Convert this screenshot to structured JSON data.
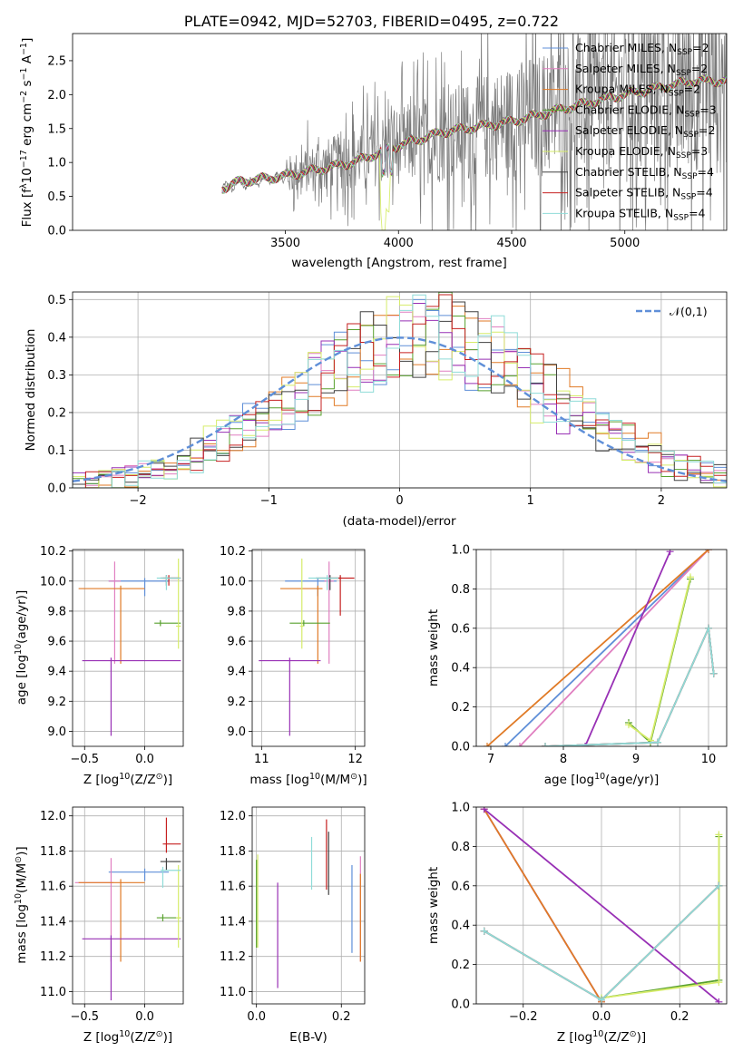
{
  "colors": {
    "chabrier_miles": "#5f8fd8",
    "salpeter_miles": "#e07fc0",
    "kroupa_miles": "#e07a26",
    "chabrier_elodie": "#58a02e",
    "salpeter_elodie": "#9830b5",
    "kroupa_elodie": "#d6ec6a",
    "chabrier_stelib": "#404040",
    "salpeter_stelib": "#c62020",
    "kroupa_stelib": "#8fdcd8",
    "observed": "#7a7a7a",
    "normal": "#5f8fd8"
  },
  "chart_data": [
    {
      "type": "line",
      "title": "PLATE=0942, MJD=52703, FIBERID=0495, z=0.722",
      "xlabel": "wavelength [Angstrom, rest frame]",
      "ylabel_parts": [
        "Flux [f",
        "λ",
        "10",
        "−17",
        " erg cm",
        "−2",
        " s",
        "−1",
        " A",
        "−1",
        "]"
      ],
      "xlim": [
        2560,
        5450
      ],
      "ylim": [
        0,
        2.9
      ],
      "xticks": [
        "3500",
        "4000",
        "4500",
        "5000"
      ],
      "yticks": [
        "0.0",
        "0.5",
        "1.0",
        "1.5",
        "2.0",
        "2.5"
      ],
      "grid": false,
      "legend_position": "top-right",
      "legend": [
        [
          "Chabrier MILES, N",
          "SSP",
          "=2"
        ],
        [
          "Salpeter MILES, N",
          "SSP",
          "=2"
        ],
        [
          "Kroupa MILES, N",
          "SSP",
          "=2"
        ],
        [
          "Chabrier ELODIE, N",
          "SSP",
          "=3"
        ],
        [
          "Salpeter ELODIE, N",
          "SSP",
          "=2"
        ],
        [
          "Kroupa ELODIE, N",
          "SSP",
          "=3"
        ],
        [
          "Chabrier STELIB, N",
          "SSP",
          "=4"
        ],
        [
          "Salpeter STELIB, N",
          "SSP",
          "=4"
        ],
        [
          "Kroupa STELIB, N",
          "SSP",
          "=4"
        ]
      ],
      "model_trend": {
        "x": [
          3220,
          3300,
          3500,
          3800,
          4000,
          4200,
          4500,
          4800,
          5000,
          5300
        ],
        "y": [
          0.62,
          0.72,
          0.8,
          1.0,
          1.25,
          1.45,
          1.6,
          1.85,
          2.0,
          2.2
        ]
      },
      "observed_trend": {
        "x": [
          3220,
          3500,
          4000,
          4500,
          5000,
          5300
        ],
        "y": [
          0.62,
          0.8,
          1.25,
          1.6,
          2.0,
          2.2
        ]
      }
    },
    {
      "type": "bar",
      "xlabel": "(data-model)/error",
      "ylabel": "Normed distribution",
      "xlim": [
        -2.5,
        2.5
      ],
      "ylim": [
        0,
        0.52
      ],
      "xticks": [
        "−2",
        "−1",
        "0",
        "1",
        "2"
      ],
      "yticks": [
        "0.0",
        "0.1",
        "0.2",
        "0.3",
        "0.4",
        "0.5"
      ],
      "grid": true,
      "legend_position": "top-right",
      "legend_label": "𝒩(0,1)",
      "normal": {
        "mean": 0,
        "sigma": 1
      },
      "bin_width": 0.1
    },
    {
      "type": "scatter",
      "xlabel_parts": [
        "Z [log",
        "10",
        "(Z/Z",
        "⊙",
        ")]"
      ],
      "ylabel_parts": [
        "age  [log",
        "10",
        "(age/yr)]"
      ],
      "xlim": [
        -0.6,
        0.32
      ],
      "ylim": [
        8.9,
        10.21
      ],
      "xticks": [
        "−0.5",
        "0.0"
      ],
      "yticks": [
        "9.0",
        "9.2",
        "9.4",
        "9.6",
        "9.8",
        "10.0",
        "10.2"
      ],
      "grid": true,
      "points": [
        {
          "model": "chabrier_miles",
          "x": 0.0,
          "y": 10.0,
          "xerr": [
            0.3,
            0.2
          ],
          "yerr": [
            0.1,
            0.02
          ]
        },
        {
          "model": "salpeter_miles",
          "x": -0.25,
          "y": 10.0,
          "xerr": [
            0.05,
            0.05
          ],
          "yerr": [
            0.55,
            0.13
          ]
        },
        {
          "model": "kroupa_miles",
          "x": -0.2,
          "y": 9.95,
          "xerr": [
            0.35,
            0.2
          ],
          "yerr": [
            0.5,
            0.02
          ]
        },
        {
          "model": "chabrier_elodie",
          "x": 0.13,
          "y": 9.72,
          "xerr": [
            0.05,
            0.17
          ],
          "yerr": [
            0.02,
            0.02
          ]
        },
        {
          "model": "salpeter_elodie",
          "x": -0.28,
          "y": 9.47,
          "xerr": [
            0.24,
            0.58
          ],
          "yerr": [
            0.5,
            0.02
          ]
        },
        {
          "model": "kroupa_elodie",
          "x": 0.28,
          "y": 9.7,
          "xerr": [
            0.02,
            0.02
          ],
          "yerr": [
            0.15,
            0.45
          ]
        },
        {
          "model": "chabrier_stelib",
          "x": 0.18,
          "y": 10.02,
          "xerr": [
            0.05,
            0.1
          ],
          "yerr": [
            0.05,
            0.02
          ]
        },
        {
          "model": "salpeter_stelib",
          "x": 0.2,
          "y": 10.02,
          "xerr": [
            0.05,
            0.1
          ],
          "yerr": [
            0.05,
            0.02
          ]
        },
        {
          "model": "kroupa_stelib",
          "x": 0.18,
          "y": 10.02,
          "xerr": [
            0.08,
            0.12
          ],
          "yerr": [
            0.08,
            0.02
          ]
        }
      ]
    },
    {
      "type": "scatter",
      "xlabel_parts": [
        "mass [log",
        "10",
        "(M/M",
        "⊙",
        ")]"
      ],
      "xlim": [
        10.9,
        12.1
      ],
      "ylim": [
        8.9,
        10.21
      ],
      "xticks": [
        "11",
        "12"
      ],
      "yticks": [
        "9.0",
        "9.2",
        "9.4",
        "9.6",
        "9.8",
        "10.0",
        "10.2"
      ],
      "grid": true,
      "points": [
        {
          "model": "chabrier_miles",
          "x": 11.6,
          "y": 10.0,
          "xerr": [
            0.35,
            0.2
          ],
          "yerr": [
            0.1,
            0.02
          ]
        },
        {
          "model": "salpeter_miles",
          "x": 11.72,
          "y": 10.0,
          "xerr": [
            0.05,
            0.05
          ],
          "yerr": [
            0.55,
            0.13
          ]
        },
        {
          "model": "kroupa_miles",
          "x": 11.6,
          "y": 9.95,
          "xerr": [
            0.4,
            0.05
          ],
          "yerr": [
            0.5,
            0.02
          ]
        },
        {
          "model": "chabrier_elodie",
          "x": 11.45,
          "y": 9.72,
          "xerr": [
            0.15,
            0.28
          ],
          "yerr": [
            0.02,
            0.02
          ]
        },
        {
          "model": "salpeter_elodie",
          "x": 11.3,
          "y": 9.47,
          "xerr": [
            0.33,
            0.33
          ],
          "yerr": [
            0.5,
            0.02
          ]
        },
        {
          "model": "kroupa_elodie",
          "x": 11.43,
          "y": 9.7,
          "xerr": [
            0.02,
            0.02
          ],
          "yerr": [
            0.15,
            0.45
          ]
        },
        {
          "model": "chabrier_stelib",
          "x": 11.73,
          "y": 10.02,
          "xerr": [
            0.15,
            0.12
          ],
          "yerr": [
            0.08,
            0.02
          ]
        },
        {
          "model": "salpeter_stelib",
          "x": 11.84,
          "y": 10.02,
          "xerr": [
            0.1,
            0.15
          ],
          "yerr": [
            0.25,
            0.02
          ]
        },
        {
          "model": "kroupa_stelib",
          "x": 11.7,
          "y": 10.02,
          "xerr": [
            0.2,
            0.12
          ],
          "yerr": [
            0.08,
            0.02
          ]
        }
      ]
    },
    {
      "type": "line",
      "xlabel_parts": [
        "age  [log",
        "10",
        "(age/yr)]"
      ],
      "ylabel": "mass weight",
      "xlim": [
        6.8,
        10.25
      ],
      "ylim": [
        0,
        1.0
      ],
      "xticks": [
        "7",
        "8",
        "9",
        "10"
      ],
      "yticks": [
        "0.0",
        "0.2",
        "0.4",
        "0.6",
        "0.8",
        "1.0"
      ],
      "grid": true,
      "series": [
        {
          "model": "chabrier_miles",
          "x": [
            7.2,
            10.0
          ],
          "y": [
            0.0,
            1.0
          ]
        },
        {
          "model": "salpeter_miles",
          "x": [
            7.4,
            10.0
          ],
          "y": [
            0.0,
            1.0
          ]
        },
        {
          "model": "kroupa_miles",
          "x": [
            6.95,
            10.0
          ],
          "y": [
            0.0,
            1.0
          ]
        },
        {
          "model": "chabrier_elodie",
          "x": [
            8.9,
            9.2,
            9.75
          ],
          "y": [
            0.12,
            0.02,
            0.85
          ]
        },
        {
          "model": "salpeter_elodie",
          "x": [
            8.3,
            9.47
          ],
          "y": [
            0.0,
            0.99
          ]
        },
        {
          "model": "kroupa_elodie",
          "x": [
            8.9,
            9.2,
            9.75
          ],
          "y": [
            0.11,
            0.03,
            0.86
          ]
        },
        {
          "model": "chabrier_stelib",
          "x": [
            7.75,
            9.3,
            10.0,
            10.07
          ],
          "y": [
            0.0,
            0.02,
            0.6,
            0.37
          ]
        },
        {
          "model": "salpeter_stelib",
          "x": [
            7.75,
            9.3,
            10.0,
            10.07
          ],
          "y": [
            0.0,
            0.02,
            0.6,
            0.37
          ]
        },
        {
          "model": "kroupa_stelib",
          "x": [
            7.75,
            9.3,
            10.0,
            10.07
          ],
          "y": [
            0.0,
            0.02,
            0.6,
            0.37
          ]
        }
      ]
    },
    {
      "type": "scatter",
      "xlabel_parts": [
        "Z [log",
        "10",
        "(Z/Z",
        "⊙",
        ")]"
      ],
      "ylabel_parts": [
        "mass [log",
        "10",
        "(M/M",
        "⊙",
        ")]"
      ],
      "xlim": [
        -0.6,
        0.32
      ],
      "ylim": [
        10.93,
        12.05
      ],
      "xticks": [
        "−0.5",
        "0.0"
      ],
      "yticks": [
        "11.0",
        "11.2",
        "11.4",
        "11.6",
        "11.8",
        "12.0"
      ],
      "grid": true,
      "points": [
        {
          "model": "chabrier_miles",
          "x": 0.0,
          "y": 11.68,
          "xerr": [
            0.3,
            0.2
          ],
          "yerr": [
            0.05,
            0.02
          ]
        },
        {
          "model": "salpeter_miles",
          "x": -0.28,
          "y": 11.62,
          "xerr": [
            0.3,
            0.02
          ],
          "yerr": [
            0.45,
            0.14
          ]
        },
        {
          "model": "kroupa_miles",
          "x": -0.2,
          "y": 11.62,
          "xerr": [
            0.35,
            0.2
          ],
          "yerr": [
            0.45,
            0.02
          ]
        },
        {
          "model": "chabrier_elodie",
          "x": 0.15,
          "y": 11.42,
          "xerr": [
            0.05,
            0.15
          ],
          "yerr": [
            0.02,
            0.02
          ]
        },
        {
          "model": "salpeter_elodie",
          "x": -0.28,
          "y": 11.3,
          "xerr": [
            0.24,
            0.58
          ],
          "yerr": [
            0.35,
            0.02
          ]
        },
        {
          "model": "kroupa_elodie",
          "x": 0.28,
          "y": 11.42,
          "xerr": [
            0.02,
            0.02
          ],
          "yerr": [
            0.17,
            0.3
          ]
        },
        {
          "model": "chabrier_stelib",
          "x": 0.18,
          "y": 11.74,
          "xerr": [
            0.05,
            0.12
          ],
          "yerr": [
            0.05,
            0.02
          ]
        },
        {
          "model": "salpeter_stelib",
          "x": 0.18,
          "y": 11.84,
          "xerr": [
            0.03,
            0.12
          ],
          "yerr": [
            0.05,
            0.15
          ]
        },
        {
          "model": "kroupa_stelib",
          "x": 0.15,
          "y": 11.69,
          "xerr": [
            0.02,
            0.15
          ],
          "yerr": [
            0.1,
            0.02
          ]
        }
      ]
    },
    {
      "type": "scatter",
      "xlabel": "E(B-V)",
      "xlim": [
        -0.01,
        0.255
      ],
      "ylim": [
        10.93,
        12.05
      ],
      "xticks": [
        "0.0",
        "0.2"
      ],
      "yticks": [
        "11.0",
        "11.2",
        "11.4",
        "11.6",
        "11.8",
        "12.0"
      ],
      "grid": true,
      "points": [
        {
          "model": "chabrier_miles",
          "x": 0.225,
          "y": 11.47,
          "yerr": [
            0.25,
            0.25
          ]
        },
        {
          "model": "salpeter_miles",
          "x": 0.245,
          "y": 11.47,
          "yerr": [
            0.3,
            0.3
          ]
        },
        {
          "model": "kroupa_miles",
          "x": 0.245,
          "y": 11.42,
          "yerr": [
            0.25,
            0.25
          ]
        },
        {
          "model": "chabrier_elodie",
          "x": 0.0,
          "y": 11.5,
          "yerr": [
            0.25,
            0.25
          ]
        },
        {
          "model": "salpeter_elodie",
          "x": 0.05,
          "y": 11.32,
          "yerr": [
            0.3,
            0.3
          ]
        },
        {
          "model": "kroupa_elodie",
          "x": 0.003,
          "y": 11.5,
          "yerr": [
            0.25,
            0.28
          ]
        },
        {
          "model": "chabrier_stelib",
          "x": 0.17,
          "y": 11.73,
          "yerr": [
            0.18,
            0.18
          ]
        },
        {
          "model": "salpeter_stelib",
          "x": 0.165,
          "y": 11.78,
          "yerr": [
            0.2,
            0.2
          ]
        },
        {
          "model": "kroupa_stelib",
          "x": 0.13,
          "y": 11.73,
          "yerr": [
            0.15,
            0.15
          ]
        }
      ]
    },
    {
      "type": "line",
      "xlabel_parts": [
        "Z [log",
        "10",
        "(Z/Z",
        "⊙",
        ")]"
      ],
      "ylabel": "mass weight",
      "xlim": [
        -0.32,
        0.32
      ],
      "ylim": [
        0,
        1.0
      ],
      "xticks": [
        "−0.2",
        "0.0",
        "0.2"
      ],
      "yticks": [
        "0.0",
        "0.2",
        "0.4",
        "0.6",
        "0.8",
        "1.0"
      ],
      "grid": true,
      "series": [
        {
          "model": "chabrier_miles",
          "x": [
            -0.3,
            0.0
          ],
          "y": [
            0.99,
            0.01
          ]
        },
        {
          "model": "salpeter_miles",
          "x": [
            -0.3,
            0.0
          ],
          "y": [
            0.99,
            0.01
          ]
        },
        {
          "model": "kroupa_miles",
          "x": [
            -0.3,
            0.0
          ],
          "y": [
            0.99,
            0.01
          ]
        },
        {
          "model": "chabrier_elodie",
          "x": [
            0.0,
            0.3,
            0.3
          ],
          "y": [
            0.03,
            0.12,
            0.85
          ]
        },
        {
          "model": "salpeter_elodie",
          "x": [
            -0.3,
            0.3
          ],
          "y": [
            0.99,
            0.01
          ]
        },
        {
          "model": "kroupa_elodie",
          "x": [
            0.0,
            0.3,
            0.3
          ],
          "y": [
            0.03,
            0.11,
            0.86
          ]
        },
        {
          "model": "chabrier_stelib",
          "x": [
            -0.3,
            0.0,
            0.3
          ],
          "y": [
            0.37,
            0.02,
            0.6
          ]
        },
        {
          "model": "salpeter_stelib",
          "x": [
            -0.3,
            0.0,
            0.3
          ],
          "y": [
            0.37,
            0.02,
            0.6
          ]
        },
        {
          "model": "kroupa_stelib",
          "x": [
            -0.3,
            0.0,
            0.3
          ],
          "y": [
            0.37,
            0.02,
            0.6
          ]
        }
      ]
    }
  ]
}
